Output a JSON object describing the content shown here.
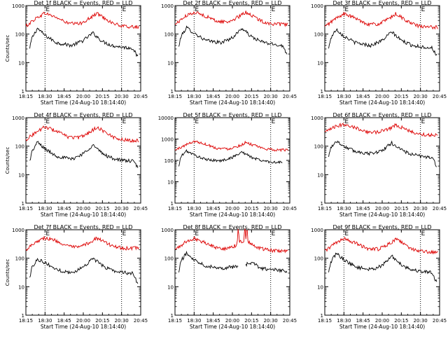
{
  "colors": {
    "events": "#000000",
    "lld": "#dd0000",
    "axis": "#000000",
    "background": "#ffffff"
  },
  "chart_data": [
    {
      "type": "line",
      "title": "Det 1f BLACK = Events, RED = LLD",
      "xlabel": "Start Time (24-Aug-10 18:14:40)",
      "ylabel": "Counts/sec",
      "x_tick_labels": [
        "18:15",
        "18:30",
        "18:45",
        "20:00",
        "20:15",
        "20:30",
        "20:45"
      ],
      "y_tick_labels": [
        "1",
        "10",
        "100",
        "1000"
      ],
      "yscale": "log",
      "ylim": [
        1,
        1000
      ],
      "marker_labels": [
        "E",
        "E"
      ],
      "vlines_at_tick_index": [
        1,
        5
      ],
      "grid": false,
      "series": [
        {
          "name": "Events",
          "color": "black",
          "x_index": [
            0.2,
            0.3,
            0.6,
            1.0,
            1.6,
            2.4,
            3.0,
            3.5,
            4.0,
            4.5,
            5.0,
            5.6,
            5.85
          ],
          "values": [
            30,
            70,
            160,
            90,
            50,
            40,
            60,
            110,
            55,
            40,
            35,
            32,
            15
          ]
        },
        {
          "name": "LLD",
          "color": "red",
          "x_index": [
            0.0,
            0.5,
            1.0,
            1.6,
            2.2,
            2.8,
            3.4,
            3.7,
            4.0,
            4.5,
            5.0,
            5.5,
            5.9
          ],
          "values": [
            190,
            350,
            550,
            380,
            240,
            230,
            380,
            540,
            410,
            250,
            190,
            180,
            180
          ]
        }
      ]
    },
    {
      "type": "line",
      "title": "Det 2f BLACK = Events, RED = LLD",
      "xlabel": "Start Time (24-Aug-10 18:14:40)",
      "ylabel": "",
      "x_tick_labels": [
        "18:15",
        "18:30",
        "18:45",
        "20:00",
        "20:15",
        "20:30",
        "20:45"
      ],
      "y_tick_labels": [
        "1",
        "10",
        "100",
        "1000"
      ],
      "yscale": "log",
      "ylim": [
        1,
        1000
      ],
      "marker_labels": [
        "E",
        "E"
      ],
      "vlines_at_tick_index": [
        1,
        5
      ],
      "grid": false,
      "series": [
        {
          "name": "Events",
          "color": "black",
          "x_index": [
            0.2,
            0.3,
            0.6,
            1.0,
            1.6,
            2.4,
            3.0,
            3.5,
            4.0,
            4.5,
            5.0,
            5.6,
            5.85
          ],
          "values": [
            35,
            80,
            170,
            110,
            60,
            50,
            75,
            160,
            80,
            55,
            45,
            40,
            20
          ]
        },
        {
          "name": "LLD",
          "color": "red",
          "x_index": [
            0.0,
            0.5,
            1.0,
            1.6,
            2.2,
            2.8,
            3.4,
            3.7,
            4.0,
            4.5,
            5.0,
            5.5,
            5.9
          ],
          "values": [
            220,
            400,
            600,
            430,
            280,
            270,
            430,
            600,
            460,
            290,
            230,
            220,
            220
          ]
        }
      ]
    },
    {
      "type": "line",
      "title": "Det 3f BLACK = Events, RED = LLD",
      "xlabel": "Start Time (24-Aug-10 18:14:40)",
      "ylabel": "",
      "x_tick_labels": [
        "18:15",
        "18:30",
        "18:45",
        "20:00",
        "20:15",
        "20:30",
        "20:45"
      ],
      "y_tick_labels": [
        "1",
        "10",
        "100",
        "1000"
      ],
      "yscale": "log",
      "ylim": [
        1,
        1000
      ],
      "marker_labels": [
        "E",
        "E"
      ],
      "vlines_at_tick_index": [
        1,
        5
      ],
      "grid": false,
      "series": [
        {
          "name": "Events",
          "color": "black",
          "x_index": [
            0.2,
            0.3,
            0.6,
            1.0,
            1.6,
            2.4,
            3.0,
            3.5,
            4.0,
            4.5,
            5.0,
            5.6,
            5.85
          ],
          "values": [
            30,
            70,
            150,
            85,
            50,
            40,
            60,
            120,
            60,
            42,
            36,
            33,
            18
          ]
        },
        {
          "name": "LLD",
          "color": "red",
          "x_index": [
            0.0,
            0.5,
            1.0,
            1.6,
            2.2,
            2.8,
            3.4,
            3.7,
            4.0,
            4.5,
            5.0,
            5.5,
            5.9
          ],
          "values": [
            180,
            330,
            520,
            360,
            230,
            220,
            360,
            520,
            390,
            240,
            185,
            175,
            175
          ]
        }
      ]
    },
    {
      "type": "line",
      "title": "Det 4f BLACK = Events, RED = LLD",
      "xlabel": "Start Time (24-Aug-10 18:14:40)",
      "ylabel": "Counts/sec",
      "x_tick_labels": [
        "18:15",
        "18:30",
        "18:45",
        "20:00",
        "20:15",
        "20:30",
        "20:45"
      ],
      "y_tick_labels": [
        "1",
        "10",
        "100",
        "1000"
      ],
      "yscale": "log",
      "ylim": [
        1,
        1000
      ],
      "marker_labels": [
        "E",
        "E"
      ],
      "vlines_at_tick_index": [
        1,
        5
      ],
      "grid": false,
      "series": [
        {
          "name": "Events",
          "color": "black",
          "x_index": [
            0.2,
            0.3,
            0.6,
            1.0,
            1.6,
            2.4,
            3.0,
            3.5,
            4.0,
            4.5,
            5.0,
            5.6,
            5.85
          ],
          "values": [
            30,
            60,
            140,
            80,
            45,
            35,
            55,
            110,
            55,
            38,
            32,
            30,
            18
          ]
        },
        {
          "name": "LLD",
          "color": "red",
          "x_index": [
            0.0,
            0.5,
            1.0,
            1.6,
            2.2,
            2.8,
            3.4,
            3.7,
            4.0,
            4.5,
            5.0,
            5.5,
            5.9
          ],
          "values": [
            170,
            300,
            480,
            340,
            210,
            200,
            330,
            470,
            360,
            220,
            170,
            160,
            160
          ]
        }
      ]
    },
    {
      "type": "line",
      "title": "Det 5f BLACK = Events, RED = LLD",
      "xlabel": "Start Time (24-Aug-10 18:14:40)",
      "ylabel": "",
      "x_tick_labels": [
        "18:15",
        "18:30",
        "18:45",
        "20:00",
        "20:15",
        "20:30",
        "20:45"
      ],
      "y_tick_labels": [
        "1",
        "10",
        "100",
        "1000",
        "10000"
      ],
      "yscale": "log",
      "ylim": [
        1,
        10000
      ],
      "marker_labels": [
        "E",
        "E"
      ],
      "vlines_at_tick_index": [
        1,
        5
      ],
      "grid": false,
      "series": [
        {
          "name": "Events",
          "color": "black",
          "x_index": [
            0.2,
            0.3,
            0.6,
            1.0,
            1.6,
            2.4,
            3.0,
            3.5,
            4.0,
            4.5,
            5.0,
            5.6
          ],
          "values": [
            50,
            150,
            280,
            180,
            110,
            95,
            140,
            250,
            140,
            100,
            85,
            80
          ]
        },
        {
          "name": "LLD",
          "color": "red",
          "x_index": [
            0.0,
            0.5,
            1.0,
            1.6,
            2.2,
            2.8,
            3.4,
            3.7,
            4.0,
            4.5,
            5.0,
            5.5,
            5.9
          ],
          "values": [
            300,
            500,
            800,
            580,
            370,
            350,
            500,
            700,
            560,
            380,
            320,
            310,
            310
          ]
        }
      ]
    },
    {
      "type": "line",
      "title": "Det 6f BLACK = Events, RED = LLD",
      "xlabel": "Start Time (24-Aug-10 18:14:40)",
      "ylabel": "",
      "x_tick_labels": [
        "18:15",
        "18:30",
        "18:45",
        "20:00",
        "20:15",
        "20:30",
        "20:45"
      ],
      "y_tick_labels": [
        "1",
        "10",
        "100",
        "1000"
      ],
      "yscale": "log",
      "ylim": [
        1,
        1000
      ],
      "marker_labels": [
        "E",
        "E"
      ],
      "vlines_at_tick_index": [
        1,
        5
      ],
      "grid": false,
      "series": [
        {
          "name": "Events",
          "color": "black",
          "x_index": [
            0.2,
            0.3,
            0.6,
            1.0,
            1.6,
            2.4,
            3.0,
            3.5,
            4.0,
            4.5,
            5.0,
            5.6,
            5.85
          ],
          "values": [
            40,
            90,
            150,
            100,
            65,
            55,
            70,
            130,
            75,
            52,
            45,
            40,
            20
          ]
        },
        {
          "name": "LLD",
          "color": "red",
          "x_index": [
            0.0,
            0.5,
            1.0,
            1.6,
            2.2,
            2.8,
            3.4,
            3.7,
            4.0,
            4.5,
            5.0,
            5.5,
            5.9
          ],
          "values": [
            300,
            470,
            600,
            450,
            320,
            310,
            430,
            560,
            460,
            320,
            260,
            250,
            250
          ]
        }
      ]
    },
    {
      "type": "line",
      "title": "Det 7f BLACK = Events, RED = LLD",
      "xlabel": "Start Time (24-Aug-10 18:14:40)",
      "ylabel": "Counts/sec",
      "x_tick_labels": [
        "18:15",
        "18:30",
        "18:45",
        "20:00",
        "20:15",
        "20:30",
        "20:45"
      ],
      "y_tick_labels": [
        "1",
        "10",
        "100",
        "1000"
      ],
      "yscale": "log",
      "ylim": [
        1,
        1000
      ],
      "marker_labels": [
        "E",
        "E"
      ],
      "vlines_at_tick_index": [
        1,
        5
      ],
      "grid": false,
      "series": [
        {
          "name": "Events",
          "color": "black",
          "x_index": [
            0.2,
            0.3,
            0.6,
            1.0,
            1.6,
            2.4,
            3.0,
            3.5,
            4.0,
            4.5,
            5.0,
            5.6,
            5.85
          ],
          "values": [
            20,
            45,
            95,
            70,
            40,
            30,
            50,
            100,
            55,
            38,
            32,
            30,
            12
          ]
        },
        {
          "name": "LLD",
          "color": "red",
          "x_index": [
            0.0,
            0.5,
            1.0,
            1.6,
            2.2,
            2.8,
            3.4,
            3.7,
            4.0,
            4.5,
            5.0,
            5.5,
            5.9
          ],
          "values": [
            200,
            380,
            520,
            410,
            260,
            240,
            380,
            520,
            400,
            280,
            230,
            220,
            240
          ]
        }
      ]
    },
    {
      "type": "line",
      "title": "Det 8f BLACK = Events, RED = LLD",
      "xlabel": "Start Time (24-Aug-10 18:14:40)",
      "ylabel": "",
      "x_tick_labels": [
        "18:15",
        "18:30",
        "18:45",
        "20:00",
        "20:15",
        "20:30",
        "20:45"
      ],
      "y_tick_labels": [
        "1",
        "10",
        "100",
        "1000"
      ],
      "yscale": "log",
      "ylim": [
        1,
        1000
      ],
      "marker_labels": [
        "E",
        "E"
      ],
      "vlines_at_tick_index": [
        1,
        5
      ],
      "grid": false,
      "series": [
        {
          "name": "Events",
          "color": "black",
          "x_index": [
            0.2,
            0.3,
            0.6,
            1.0,
            1.6,
            2.4,
            3.0,
            3.3,
            null,
            3.7,
            4.0,
            4.5,
            5.0,
            5.6,
            5.85
          ],
          "values": [
            30,
            80,
            150,
            90,
            55,
            45,
            50,
            50,
            null,
            60,
            70,
            45,
            40,
            38,
            30
          ]
        },
        {
          "name": "LLD",
          "color": "red",
          "x_index": [
            0.0,
            0.5,
            1.0,
            1.6,
            2.2,
            2.8,
            3.25,
            3.28,
            3.32,
            3.35,
            3.6,
            3.62,
            3.68,
            3.7,
            3.72,
            3.78,
            3.8,
            4.0,
            4.5,
            5.0,
            5.5,
            5.9
          ],
          "values": [
            200,
            350,
            500,
            350,
            230,
            220,
            300,
            1000,
            1000,
            380,
            400,
            1000,
            1000,
            420,
            1000,
            1000,
            400,
            300,
            220,
            190,
            180,
            180
          ]
        }
      ]
    },
    {
      "type": "line",
      "title": "Det 9f BLACK = Events, RED = LLD",
      "xlabel": "Start Time (24-Aug-10 18:14:40)",
      "ylabel": "",
      "x_tick_labels": [
        "18:15",
        "18:30",
        "18:45",
        "20:00",
        "20:15",
        "20:30",
        "20:45"
      ],
      "y_tick_labels": [
        "1",
        "10",
        "100",
        "1000"
      ],
      "yscale": "log",
      "ylim": [
        1,
        1000
      ],
      "marker_labels": [
        "E",
        "E"
      ],
      "vlines_at_tick_index": [
        1,
        5
      ],
      "grid": false,
      "series": [
        {
          "name": "Events",
          "color": "black",
          "x_index": [
            0.2,
            0.3,
            0.6,
            1.0,
            1.6,
            2.4,
            3.0,
            3.5,
            4.0,
            4.5,
            5.0,
            5.6,
            5.85
          ],
          "values": [
            30,
            70,
            150,
            90,
            50,
            40,
            55,
            120,
            60,
            40,
            35,
            32,
            14
          ]
        },
        {
          "name": "LLD",
          "color": "red",
          "x_index": [
            0.0,
            0.5,
            1.0,
            1.6,
            2.2,
            2.8,
            3.4,
            3.7,
            4.0,
            4.5,
            5.0,
            5.5,
            5.9
          ],
          "values": [
            180,
            320,
            480,
            340,
            220,
            210,
            330,
            470,
            360,
            220,
            175,
            165,
            165
          ]
        }
      ]
    }
  ]
}
